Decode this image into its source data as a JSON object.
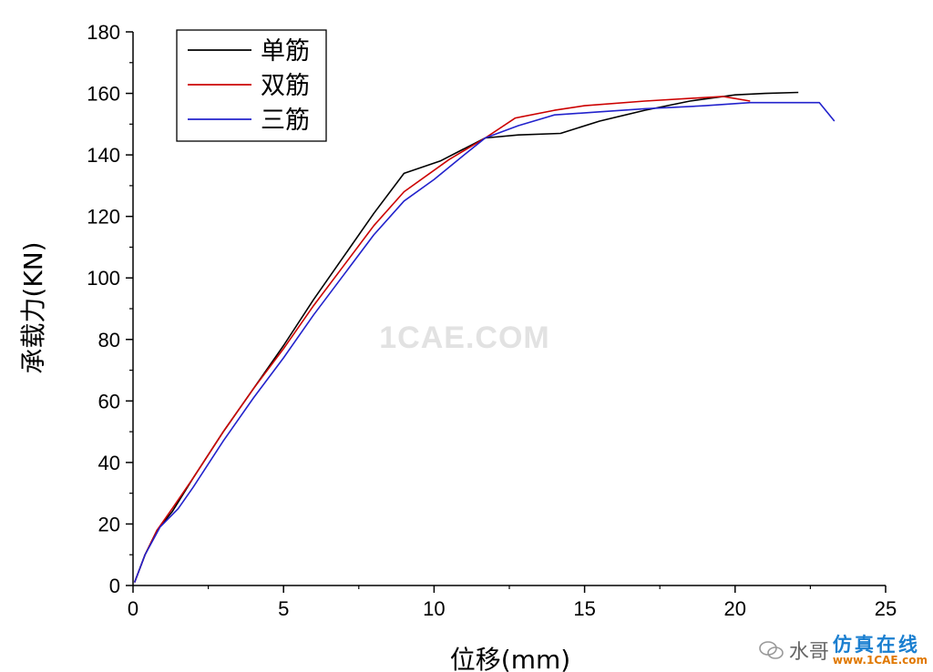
{
  "chart_data": {
    "type": "line",
    "title": "",
    "xlabel": "位移(mm)",
    "ylabel": "承载力(KN)",
    "xlim": [
      0,
      25
    ],
    "ylim": [
      0,
      180
    ],
    "xticks": [
      0,
      5,
      10,
      15,
      20,
      25
    ],
    "yticks": [
      0,
      20,
      40,
      60,
      80,
      100,
      120,
      140,
      160,
      180
    ],
    "grid": false,
    "legend_position": "top-left",
    "series": [
      {
        "name": "单筋",
        "color": "#000000",
        "points": [
          [
            0.05,
            1
          ],
          [
            0.4,
            10
          ],
          [
            0.8,
            18
          ],
          [
            1.3,
            24
          ],
          [
            2,
            35
          ],
          [
            3,
            50
          ],
          [
            4,
            64
          ],
          [
            5,
            78
          ],
          [
            6,
            93
          ],
          [
            7,
            107
          ],
          [
            8,
            121
          ],
          [
            9,
            134
          ],
          [
            10.2,
            138
          ],
          [
            11.7,
            145.5
          ],
          [
            12.8,
            146.5
          ],
          [
            14.2,
            147
          ],
          [
            15.5,
            151
          ],
          [
            17,
            154.5
          ],
          [
            18.5,
            157.5
          ],
          [
            20,
            159.5
          ],
          [
            21,
            160
          ],
          [
            22.1,
            160.3
          ]
        ]
      },
      {
        "name": "双筋",
        "color": "#cc0000",
        "points": [
          [
            0.05,
            1
          ],
          [
            0.4,
            10
          ],
          [
            0.8,
            18
          ],
          [
            1.3,
            25
          ],
          [
            2,
            35
          ],
          [
            3,
            50
          ],
          [
            4,
            64
          ],
          [
            5,
            77
          ],
          [
            6,
            91
          ],
          [
            7,
            104
          ],
          [
            8,
            117
          ],
          [
            9,
            128
          ],
          [
            10.5,
            138.5
          ],
          [
            11.7,
            145.5
          ],
          [
            12.7,
            152
          ],
          [
            14,
            154.5
          ],
          [
            15,
            156
          ],
          [
            17,
            157.5
          ],
          [
            19.6,
            159
          ],
          [
            20.5,
            157.5
          ]
        ]
      },
      {
        "name": "三筋",
        "color": "#2222cc",
        "points": [
          [
            0.05,
            1
          ],
          [
            0.4,
            10
          ],
          [
            0.9,
            19
          ],
          [
            1.5,
            25
          ],
          [
            2,
            32
          ],
          [
            3,
            47
          ],
          [
            4,
            61
          ],
          [
            5,
            74
          ],
          [
            6,
            88
          ],
          [
            7,
            101
          ],
          [
            8,
            114
          ],
          [
            9,
            125
          ],
          [
            10,
            132
          ],
          [
            11,
            140
          ],
          [
            11.7,
            145.5
          ],
          [
            12.8,
            149.5
          ],
          [
            14,
            153
          ],
          [
            15.5,
            154
          ],
          [
            17,
            155
          ],
          [
            19,
            156
          ],
          [
            20.5,
            157
          ],
          [
            22.8,
            157
          ],
          [
            23.3,
            151
          ]
        ]
      }
    ],
    "annotations": [
      "1CAE.COM"
    ]
  },
  "branding": {
    "account": "水哥",
    "site_cn": "仿真在线",
    "site_url": "www.1CAE.com"
  }
}
